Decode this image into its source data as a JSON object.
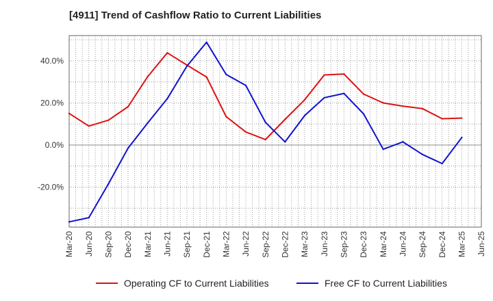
{
  "chart_data": {
    "type": "line",
    "title": "[4911]  Trend of Cashflow Ratio to Current Liabilities",
    "xlabel": "",
    "ylabel": "",
    "x": [
      "Mar-20",
      "Jun-20",
      "Sep-20",
      "Dec-20",
      "Mar-21",
      "Jun-21",
      "Sep-21",
      "Dec-21",
      "Mar-22",
      "Jun-22",
      "Sep-22",
      "Dec-22",
      "Mar-23",
      "Jun-23",
      "Sep-23",
      "Dec-23",
      "Mar-24",
      "Jun-24",
      "Sep-24",
      "Dec-24",
      "Mar-25",
      "Jun-25"
    ],
    "ylim": [
      -39,
      52
    ],
    "yticks": [
      -20,
      0,
      20,
      40
    ],
    "ytick_labels": [
      "-20.0%",
      "0.0%",
      "20.0%",
      "40.0%"
    ],
    "grid": true,
    "legend_position": "bottom",
    "series": [
      {
        "name": "Operating CF to Current Liabilities",
        "color": "#dd1111",
        "values": [
          15.0,
          9.0,
          11.8,
          18.2,
          32.5,
          43.8,
          38.0,
          32.3,
          13.5,
          6.2,
          2.6,
          12.2,
          21.5,
          33.3,
          33.7,
          24.2,
          20.0,
          18.5,
          17.3,
          12.5,
          12.8,
          null
        ]
      },
      {
        "name": "Free CF to Current Liabilities",
        "color": "#1111cc",
        "values": [
          -36.5,
          -34.5,
          -18.5,
          -1.5,
          10.5,
          22.0,
          37.5,
          48.8,
          33.5,
          28.3,
          10.8,
          1.5,
          14.0,
          22.5,
          24.5,
          14.8,
          -2.0,
          1.5,
          -4.5,
          -8.8,
          3.5,
          null
        ]
      }
    ]
  }
}
